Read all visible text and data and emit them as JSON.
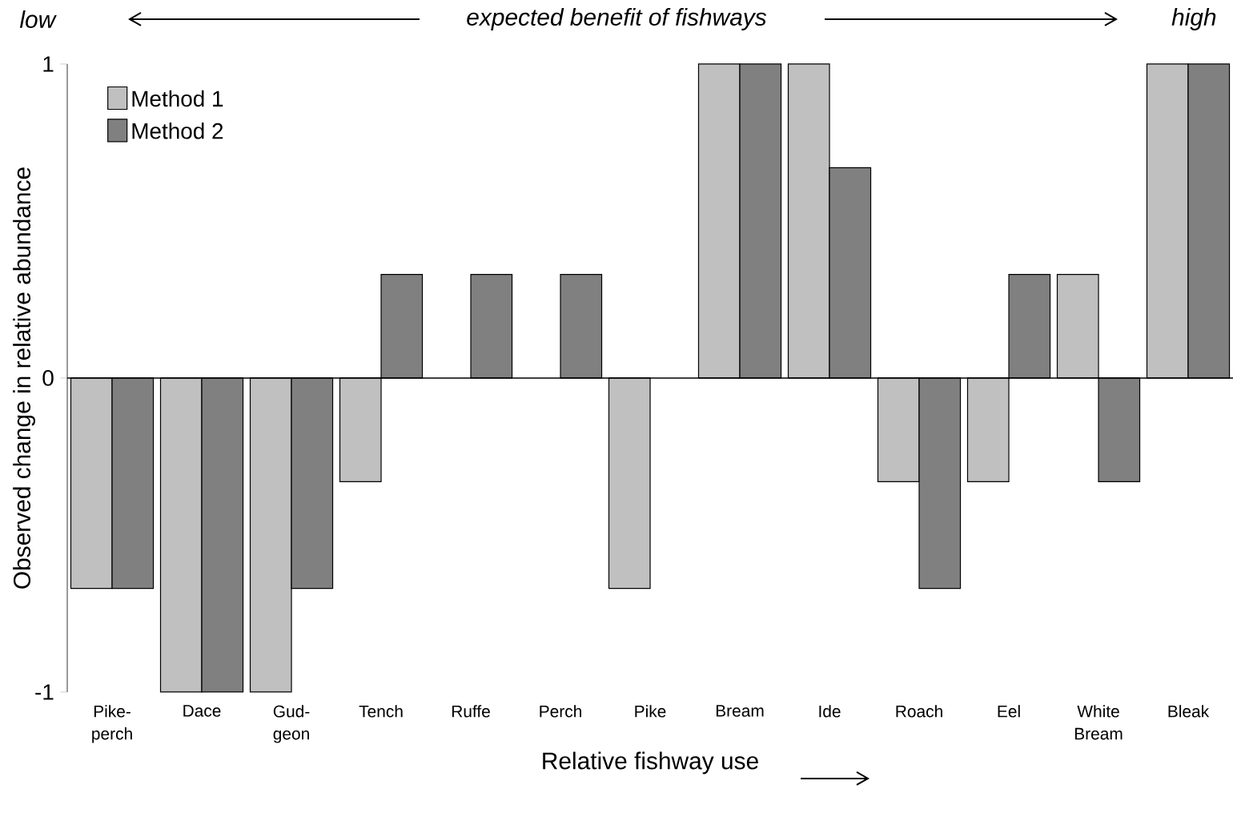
{
  "chart_data": {
    "type": "bar",
    "categories": [
      "Pike- perch",
      "Dace",
      "Gud- geon",
      "Tench",
      "Ruffe",
      "Perch",
      "Pike",
      "Bream",
      "Ide",
      "Roach",
      "Eel",
      "White Bream",
      "Bleak"
    ],
    "series": [
      {
        "name": "Method 1",
        "color": "#c0c0c0",
        "values": [
          -0.67,
          -1,
          -1,
          -0.33,
          null,
          null,
          -0.67,
          1,
          1,
          -0.33,
          -0.33,
          0.33,
          1
        ]
      },
      {
        "name": "Method 2",
        "color": "#808080",
        "values": [
          -0.67,
          -1,
          -0.67,
          0.33,
          0.33,
          0.33,
          null,
          1,
          0.67,
          -0.67,
          0.33,
          -0.33,
          1
        ]
      }
    ],
    "xlabel": "Relative fishway use",
    "ylabel": "Observed change in relative abundance",
    "annotations": [
      "low",
      "expected  benefit of fishways",
      "high"
    ],
    "ylim": [
      -1,
      1
    ],
    "yticks": [
      -1,
      0,
      1
    ],
    "legend": "top left"
  }
}
